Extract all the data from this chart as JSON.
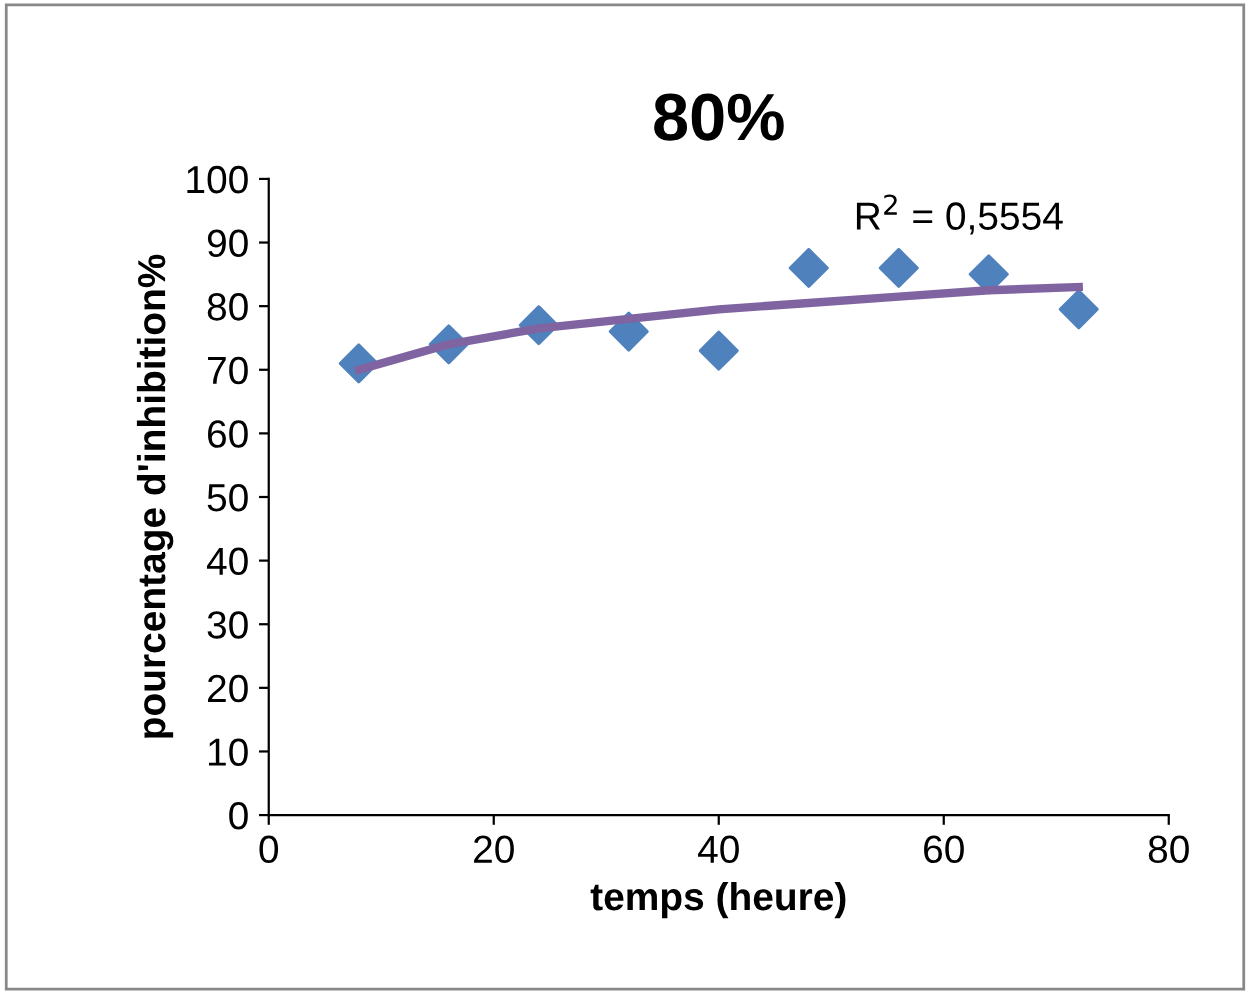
{
  "chart_data": {
    "type": "scatter",
    "title": "80%",
    "xlabel": "temps (heure)",
    "ylabel": "pourcentage d'inhibition%",
    "x": [
      8,
      16,
      24,
      32,
      40,
      48,
      56,
      64,
      72
    ],
    "series": [
      {
        "color": "#4f81bd",
        "marker": "diamond",
        "values": [
          71,
          74,
          77,
          76,
          73,
          86,
          86,
          85,
          79.5
        ]
      },
      {
        "type": "line",
        "color": "#8064a2",
        "marker": "none",
        "values": [
          70,
          74,
          76.5,
          78,
          79.5,
          80.5,
          81.5,
          82.5,
          83
        ]
      }
    ],
    "annotations": [
      "R$^{2}$ = 0,5554"
    ],
    "xlim": [
      0,
      80
    ],
    "xticks": [
      0,
      20,
      40,
      60,
      80
    ],
    "ylim": [
      0,
      100
    ],
    "yticks": [
      0,
      10,
      20,
      30,
      40,
      50,
      60,
      70,
      80,
      90,
      100
    ],
    "grid": false,
    "legend": false
  }
}
